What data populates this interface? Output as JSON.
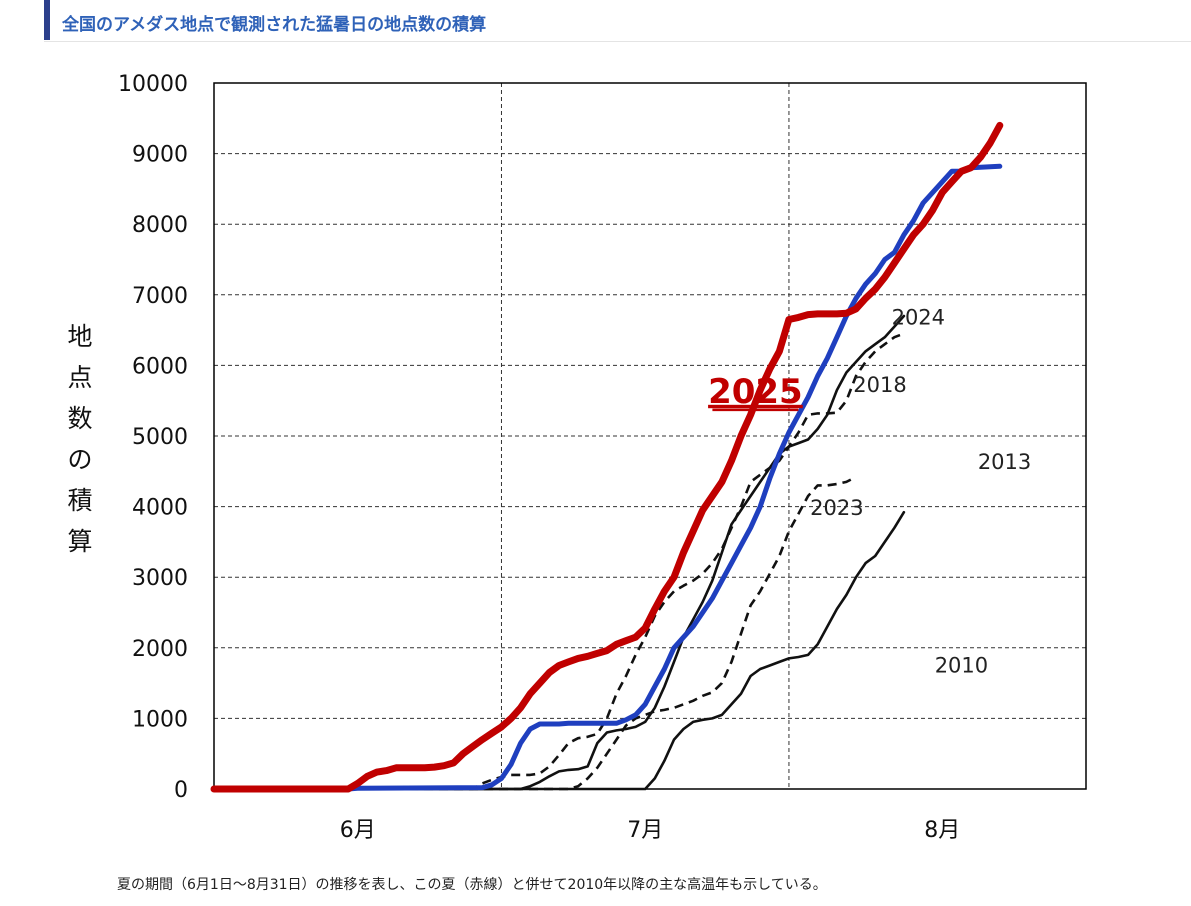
{
  "header": {
    "title": "全国のアメダス地点で観測された猛暑日の地点数の積算"
  },
  "caption": "夏の期間（6月1日〜8月31日）の推移を表し、この夏（赤線）と併せて2010年以降の主な高温年も示している。",
  "chart_data": {
    "type": "line",
    "title": "",
    "ylabel": "地点数の積算",
    "xlabel": "",
    "x_unit": "day of summer (1 = 6月1日, 92 = 8月31日)",
    "xlim": [
      1,
      92
    ],
    "ylim": [
      0,
      10000
    ],
    "yticks": [
      0,
      1000,
      2000,
      3000,
      4000,
      5000,
      6000,
      7000,
      8000,
      9000,
      10000
    ],
    "month_labels": [
      "6月",
      "7月",
      "8月"
    ],
    "month_label_positions": [
      16,
      46,
      77
    ],
    "month_boundaries": [
      31,
      61
    ],
    "grid": "horizontal dashed + month boundary dashed",
    "series": [
      {
        "name": "2025",
        "color": "#c00000",
        "style": "thick",
        "points": [
          [
            1,
            0
          ],
          [
            15,
            0
          ],
          [
            16,
            80
          ],
          [
            17,
            180
          ],
          [
            18,
            240
          ],
          [
            19,
            260
          ],
          [
            20,
            300
          ],
          [
            21,
            300
          ],
          [
            22,
            300
          ],
          [
            23,
            300
          ],
          [
            24,
            310
          ],
          [
            25,
            330
          ],
          [
            26,
            370
          ],
          [
            27,
            500
          ],
          [
            28,
            600
          ],
          [
            29,
            700
          ],
          [
            30,
            790
          ],
          [
            31,
            880
          ],
          [
            32,
            1000
          ],
          [
            33,
            1150
          ],
          [
            34,
            1350
          ],
          [
            35,
            1500
          ],
          [
            36,
            1650
          ],
          [
            37,
            1750
          ],
          [
            38,
            1800
          ],
          [
            39,
            1850
          ],
          [
            40,
            1880
          ],
          [
            41,
            1920
          ],
          [
            42,
            1960
          ],
          [
            43,
            2050
          ],
          [
            44,
            2100
          ],
          [
            45,
            2150
          ],
          [
            46,
            2280
          ],
          [
            47,
            2550
          ],
          [
            48,
            2800
          ],
          [
            49,
            3000
          ],
          [
            50,
            3350
          ],
          [
            51,
            3650
          ],
          [
            52,
            3950
          ],
          [
            53,
            4150
          ],
          [
            54,
            4350
          ],
          [
            55,
            4650
          ],
          [
            56,
            5000
          ],
          [
            57,
            5300
          ],
          [
            58,
            5650
          ],
          [
            59,
            5950
          ],
          [
            60,
            6200
          ],
          [
            61,
            6650
          ],
          [
            62,
            6680
          ],
          [
            63,
            6720
          ],
          [
            64,
            6730
          ],
          [
            65,
            6730
          ],
          [
            66,
            6730
          ],
          [
            67,
            6740
          ],
          [
            68,
            6800
          ],
          [
            69,
            6950
          ],
          [
            70,
            7080
          ],
          [
            71,
            7250
          ],
          [
            72,
            7450
          ],
          [
            73,
            7650
          ],
          [
            74,
            7850
          ],
          [
            75,
            8000
          ],
          [
            76,
            8200
          ],
          [
            77,
            8450
          ],
          [
            78,
            8600
          ],
          [
            79,
            8750
          ],
          [
            80,
            8800
          ],
          [
            81,
            8950
          ],
          [
            82,
            9150
          ],
          [
            83,
            9400
          ]
        ]
      },
      {
        "name": "2024",
        "color": "#1f3fbf",
        "style": "thick",
        "points": [
          [
            1,
            0
          ],
          [
            15,
            0
          ],
          [
            16,
            10
          ],
          [
            29,
            20
          ],
          [
            30,
            60
          ],
          [
            31,
            150
          ],
          [
            32,
            350
          ],
          [
            33,
            650
          ],
          [
            34,
            850
          ],
          [
            35,
            920
          ],
          [
            37,
            920
          ],
          [
            38,
            930
          ],
          [
            43,
            930
          ],
          [
            44,
            980
          ],
          [
            45,
            1050
          ],
          [
            46,
            1200
          ],
          [
            47,
            1450
          ],
          [
            48,
            1700
          ],
          [
            49,
            2000
          ],
          [
            50,
            2150
          ],
          [
            51,
            2300
          ],
          [
            52,
            2500
          ],
          [
            53,
            2700
          ],
          [
            54,
            2950
          ],
          [
            55,
            3200
          ],
          [
            56,
            3450
          ],
          [
            57,
            3700
          ],
          [
            58,
            4000
          ],
          [
            59,
            4400
          ],
          [
            60,
            4750
          ],
          [
            61,
            5050
          ],
          [
            62,
            5300
          ],
          [
            63,
            5550
          ],
          [
            64,
            5850
          ],
          [
            65,
            6100
          ],
          [
            66,
            6400
          ],
          [
            67,
            6700
          ],
          [
            68,
            6950
          ],
          [
            69,
            7150
          ],
          [
            70,
            7300
          ],
          [
            71,
            7500
          ],
          [
            72,
            7600
          ],
          [
            73,
            7850
          ],
          [
            74,
            8050
          ],
          [
            75,
            8300
          ],
          [
            76,
            8450
          ],
          [
            77,
            8600
          ],
          [
            78,
            8750
          ],
          [
            79,
            8750
          ],
          [
            80,
            8800
          ],
          [
            83,
            8820
          ]
        ]
      },
      {
        "name": "2018",
        "color": "#111111",
        "style": "dashed",
        "points": [
          [
            1,
            0
          ],
          [
            28,
            0
          ],
          [
            29,
            80
          ],
          [
            30,
            130
          ],
          [
            31,
            170
          ],
          [
            32,
            200
          ],
          [
            34,
            200
          ],
          [
            35,
            220
          ],
          [
            36,
            320
          ],
          [
            37,
            480
          ],
          [
            38,
            650
          ],
          [
            39,
            720
          ],
          [
            40,
            740
          ],
          [
            41,
            780
          ],
          [
            42,
            1000
          ],
          [
            43,
            1350
          ],
          [
            44,
            1600
          ],
          [
            45,
            1900
          ],
          [
            46,
            2150
          ],
          [
            47,
            2450
          ],
          [
            48,
            2650
          ],
          [
            49,
            2800
          ],
          [
            50,
            2880
          ],
          [
            51,
            2950
          ],
          [
            52,
            3050
          ],
          [
            53,
            3200
          ],
          [
            54,
            3400
          ],
          [
            55,
            3700
          ],
          [
            56,
            4000
          ],
          [
            57,
            4350
          ],
          [
            58,
            4450
          ],
          [
            59,
            4550
          ],
          [
            60,
            4650
          ],
          [
            61,
            4850
          ],
          [
            62,
            5050
          ],
          [
            63,
            5300
          ],
          [
            64,
            5320
          ],
          [
            65,
            5320
          ],
          [
            66,
            5330
          ],
          [
            67,
            5500
          ],
          [
            68,
            5850
          ],
          [
            69,
            6050
          ],
          [
            70,
            6200
          ],
          [
            71,
            6300
          ],
          [
            72,
            6400
          ],
          [
            73,
            6450
          ]
        ]
      },
      {
        "name": "2023",
        "color": "#111111",
        "style": "solid",
        "points": [
          [
            1,
            0
          ],
          [
            33,
            0
          ],
          [
            34,
            40
          ],
          [
            35,
            100
          ],
          [
            36,
            180
          ],
          [
            37,
            250
          ],
          [
            38,
            270
          ],
          [
            39,
            280
          ],
          [
            40,
            320
          ],
          [
            41,
            650
          ],
          [
            42,
            800
          ],
          [
            43,
            830
          ],
          [
            44,
            850
          ],
          [
            45,
            880
          ],
          [
            46,
            950
          ],
          [
            47,
            1150
          ],
          [
            48,
            1450
          ],
          [
            49,
            1800
          ],
          [
            50,
            2150
          ],
          [
            51,
            2400
          ],
          [
            52,
            2650
          ],
          [
            53,
            2950
          ],
          [
            54,
            3350
          ],
          [
            55,
            3750
          ],
          [
            56,
            3950
          ],
          [
            57,
            4150
          ],
          [
            58,
            4350
          ],
          [
            59,
            4550
          ],
          [
            60,
            4750
          ],
          [
            61,
            4850
          ],
          [
            62,
            4900
          ],
          [
            63,
            4950
          ],
          [
            64,
            5100
          ],
          [
            65,
            5300
          ],
          [
            66,
            5650
          ],
          [
            67,
            5900
          ],
          [
            68,
            6050
          ],
          [
            69,
            6200
          ],
          [
            70,
            6300
          ],
          [
            71,
            6400
          ],
          [
            72,
            6550
          ],
          [
            73,
            6700
          ]
        ]
      },
      {
        "name": "2013",
        "color": "#111111",
        "style": "dashed",
        "points": [
          [
            1,
            0
          ],
          [
            38,
            0
          ],
          [
            39,
            40
          ],
          [
            40,
            150
          ],
          [
            41,
            300
          ],
          [
            42,
            500
          ],
          [
            43,
            700
          ],
          [
            44,
            900
          ],
          [
            45,
            1000
          ],
          [
            46,
            1050
          ],
          [
            47,
            1100
          ],
          [
            48,
            1120
          ],
          [
            49,
            1150
          ],
          [
            50,
            1200
          ],
          [
            51,
            1250
          ],
          [
            52,
            1320
          ],
          [
            53,
            1370
          ],
          [
            54,
            1500
          ],
          [
            55,
            1800
          ],
          [
            56,
            2200
          ],
          [
            57,
            2600
          ],
          [
            58,
            2800
          ],
          [
            59,
            3050
          ],
          [
            60,
            3300
          ],
          [
            61,
            3650
          ],
          [
            62,
            3900
          ],
          [
            63,
            4150
          ],
          [
            64,
            4300
          ],
          [
            65,
            4300
          ],
          [
            66,
            4320
          ],
          [
            67,
            4350
          ],
          [
            68,
            4420
          ]
        ]
      },
      {
        "name": "2010",
        "color": "#111111",
        "style": "solid",
        "points": [
          [
            1,
            0
          ],
          [
            46,
            0
          ],
          [
            47,
            150
          ],
          [
            48,
            400
          ],
          [
            49,
            700
          ],
          [
            50,
            850
          ],
          [
            51,
            950
          ],
          [
            52,
            980
          ],
          [
            53,
            1000
          ],
          [
            54,
            1050
          ],
          [
            55,
            1200
          ],
          [
            56,
            1350
          ],
          [
            57,
            1600
          ],
          [
            58,
            1700
          ],
          [
            59,
            1750
          ],
          [
            60,
            1800
          ],
          [
            61,
            1850
          ],
          [
            62,
            1870
          ],
          [
            63,
            1900
          ],
          [
            64,
            2050
          ],
          [
            65,
            2300
          ],
          [
            66,
            2550
          ],
          [
            67,
            2750
          ],
          [
            68,
            3000
          ],
          [
            69,
            3200
          ],
          [
            70,
            3300
          ],
          [
            71,
            3500
          ],
          [
            72,
            3700
          ],
          [
            73,
            3920
          ]
        ]
      }
    ],
    "series_labels": [
      {
        "text": "2025",
        "x": 57.5,
        "y": 5470,
        "color": "#c00000",
        "style": "big"
      },
      {
        "text": "2024",
        "x": 74.5,
        "y": 6580,
        "color": "#1f3fbf",
        "style": "normal"
      },
      {
        "text": "2018",
        "x": 70.5,
        "y": 5620,
        "color": "#222222",
        "style": "normal"
      },
      {
        "text": "2023",
        "x": 66,
        "y": 3880,
        "color": "#222222",
        "style": "normal"
      },
      {
        "text": "2013",
        "x": 83.5,
        "y": 4530,
        "color": "#222222",
        "style": "normal"
      },
      {
        "text": "2010",
        "x": 79,
        "y": 1650,
        "color": "#222222",
        "style": "normal"
      }
    ]
  }
}
